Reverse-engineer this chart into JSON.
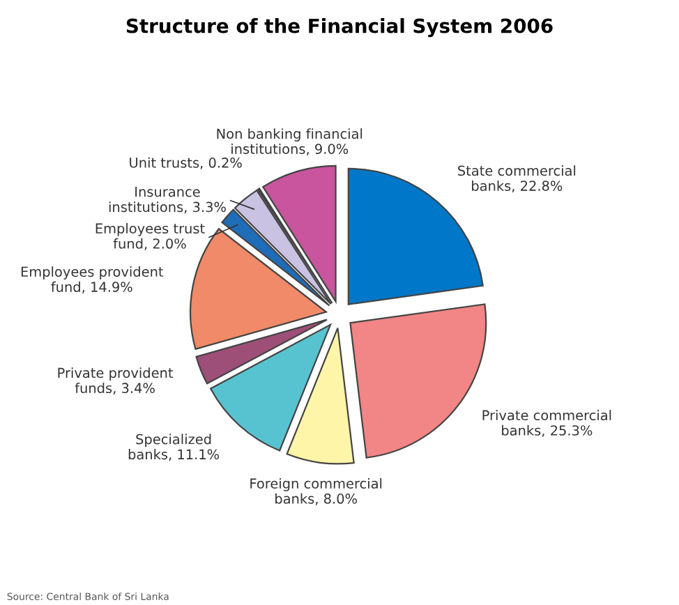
{
  "chart_data": {
    "type": "pie",
    "title": "Structure of the Financial System 2006",
    "categories": [
      "State commercial\nbanks",
      "Private commercial\nbanks",
      "Foreign commercial\nbanks",
      "Specialized\nbanks",
      "Private provident\nfunds",
      "Employees provident\nfund",
      "Employees trust\nfund",
      "Insurance\ninstitutions",
      "Unit trusts",
      "Non banking financial\ninstitutions"
    ],
    "values": [
      22.8,
      25.3,
      8.0,
      11.1,
      3.4,
      14.9,
      2.0,
      3.3,
      0.2,
      9.0
    ],
    "value_labels": [
      "22.8%",
      "25.3%",
      "8.0%",
      "11.1%",
      "3.4%",
      "14.9%",
      "2.0%",
      "3.3%",
      "0.2%",
      "9.0%"
    ],
    "colors": [
      "#0077c8",
      "#f28585",
      "#fff5a8",
      "#58c3d0",
      "#9e4f78",
      "#f08a68",
      "#1f6cb8",
      "#c9c2e2",
      "#333333",
      "#c8559d"
    ],
    "annotations": [
      "Source: Central Bank of Sri Lanka"
    ]
  }
}
